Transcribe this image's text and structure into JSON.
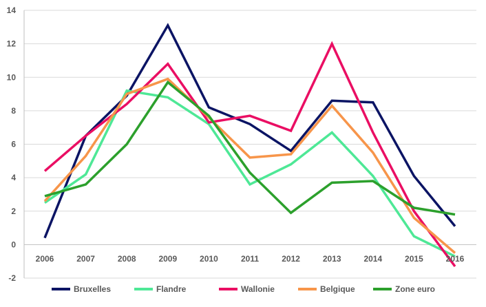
{
  "chart_data": {
    "type": "line",
    "categories": [
      "2006",
      "2007",
      "2008",
      "2009",
      "2010",
      "2011",
      "2012",
      "2013",
      "2014",
      "2015",
      "2016"
    ],
    "ylim": [
      -2,
      14
    ],
    "yticks": [
      "-2",
      "0",
      "2",
      "4",
      "6",
      "8",
      "10",
      "12",
      "14"
    ],
    "grid": true,
    "legend_position": "bottom",
    "series": [
      {
        "name": "Bruxelles",
        "color": "#0b1464",
        "values": [
          0.4,
          6.5,
          8.9,
          13.1,
          8.2,
          7.2,
          5.6,
          8.6,
          8.5,
          4.1,
          1.1
        ]
      },
      {
        "name": "Flandre",
        "color": "#4ee896",
        "values": [
          2.5,
          4.2,
          9.2,
          8.8,
          7.2,
          3.6,
          4.8,
          6.7,
          4.1,
          0.5,
          -0.7
        ]
      },
      {
        "name": "Wallonie",
        "color": "#ea0e63",
        "values": [
          4.4,
          6.5,
          8.4,
          10.8,
          7.3,
          7.7,
          6.8,
          12.0,
          6.7,
          2.0,
          -1.3
        ]
      },
      {
        "name": "Belgique",
        "color": "#f7954a",
        "values": [
          2.6,
          5.3,
          9.0,
          9.9,
          7.6,
          5.2,
          5.4,
          8.3,
          5.5,
          1.6,
          -0.5
        ]
      },
      {
        "name": "Zone euro",
        "color": "#2ca02c",
        "values": [
          2.9,
          3.6,
          6.0,
          9.7,
          7.7,
          4.3,
          1.9,
          3.7,
          3.8,
          2.2,
          1.8
        ]
      }
    ]
  }
}
